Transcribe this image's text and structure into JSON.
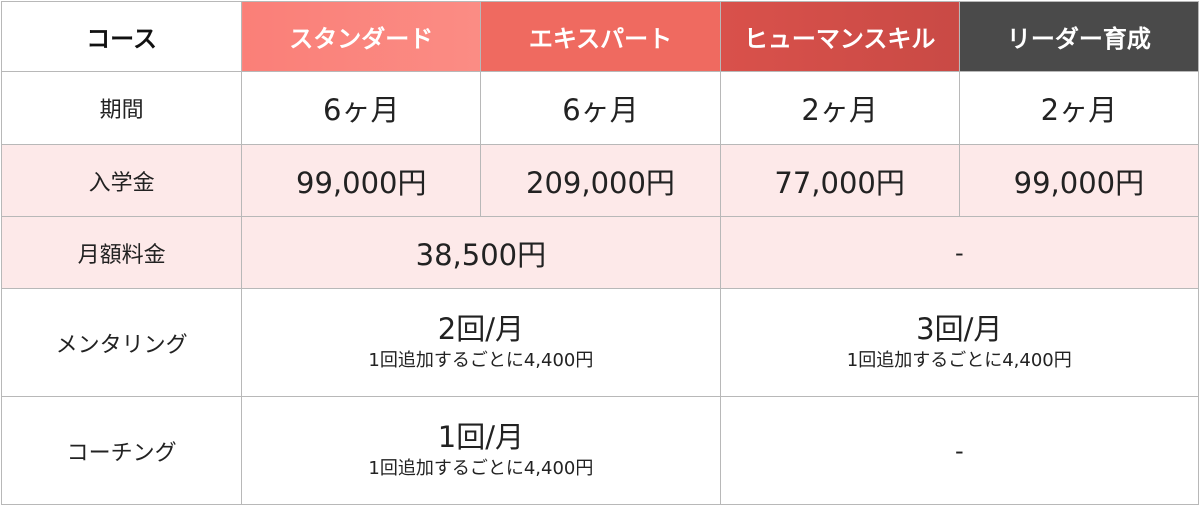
{
  "header": {
    "label": "コース",
    "courses": [
      {
        "name": "スタンダード",
        "color": "#fb8a82"
      },
      {
        "name": "エキスパート",
        "color": "#ef6a60"
      },
      {
        "name": "ヒューマンスキル",
        "color": "#d14f49"
      },
      {
        "name": "リーダー育成",
        "color": "#4a4a4a"
      }
    ]
  },
  "rows": {
    "period": {
      "label": "期間",
      "values": [
        "6ヶ月",
        "6ヶ月",
        "2ヶ月",
        "2ヶ月"
      ]
    },
    "fee": {
      "label": "入学金",
      "values": [
        "99,000円",
        "209,000円",
        "77,000円",
        "99,000円"
      ]
    },
    "monthly": {
      "label": "月額料金",
      "values": [
        "38,500円",
        "-"
      ]
    },
    "mentoring": {
      "label": "メンタリング",
      "values": [
        {
          "main": "2回/月",
          "note": "1回追加するごとに4,400円"
        },
        {
          "main": "3回/月",
          "note": "1回追加するごとに4,400円"
        }
      ]
    },
    "coaching": {
      "label": "コーチング",
      "values": [
        {
          "main": "1回/月",
          "note": "1回追加するごとに4,400円"
        },
        {
          "main": "-"
        }
      ]
    }
  },
  "colors": {
    "pink_row": "#fde9e9",
    "border": "#b8b8b8"
  }
}
